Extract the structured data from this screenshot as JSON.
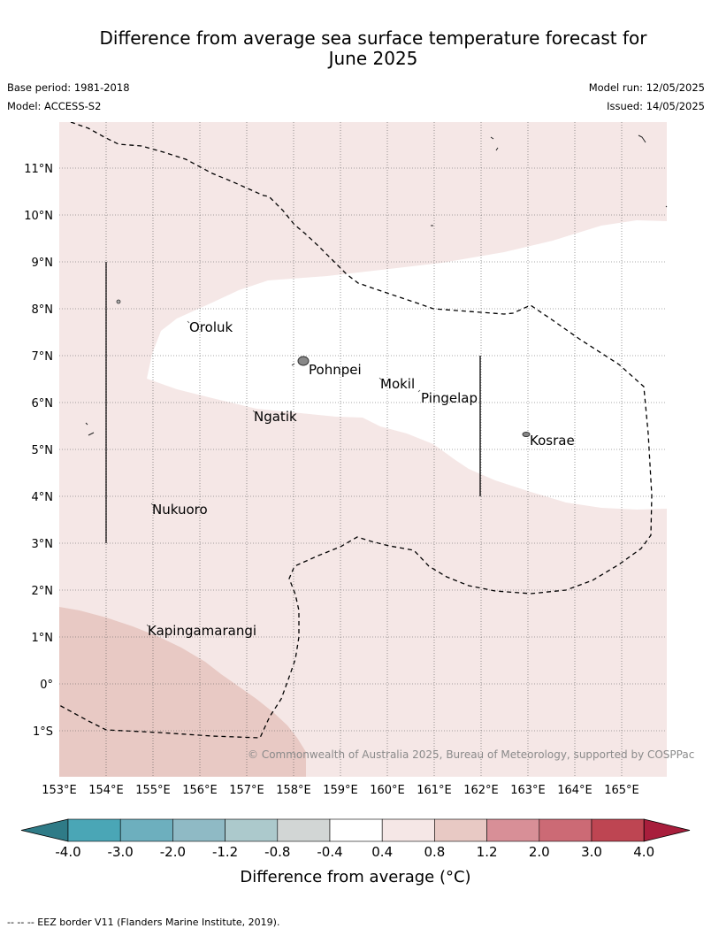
{
  "header": {
    "title": "Difference from average sea surface temperature forecast for\nJune 2025",
    "base_period": "Base period: 1981-2018",
    "model": "Model: ACCESS-S2",
    "model_run": "Model run: 12/05/2025",
    "issued": "Issued: 14/05/2025"
  },
  "map": {
    "lat_labels": [
      "11°N",
      "10°N",
      "9°N",
      "8°N",
      "7°N",
      "6°N",
      "5°N",
      "4°N",
      "3°N",
      "2°N",
      "1°N",
      "0°",
      "1°S"
    ],
    "lon_labels": [
      "153°E",
      "154°E",
      "155°E",
      "156°E",
      "157°E",
      "158°E",
      "159°E",
      "160°E",
      "161°E",
      "162°E",
      "163°E",
      "164°E",
      "165°E"
    ],
    "places": [
      "Oroluk",
      "Pohnpei",
      "Mokil",
      "Pingelap",
      "Ngatik",
      "Kosrae",
      "Nukuoro",
      "Kapingamarangi"
    ],
    "copyright": "© Commonwealth of Australia 2025, Bureau of Meteorology, supported by COSPPac",
    "colors": {
      "neutral": "#ffffff",
      "band_0_4_to_0_8": "#f5e7e6",
      "band_0_8_to_1_2": "#e8c9c4",
      "coast": "#333333"
    }
  },
  "colorbar": {
    "ticks": [
      "-4.0",
      "-3.0",
      "-2.0",
      "-1.2",
      "-0.8",
      "-0.4",
      "0.4",
      "0.8",
      "1.2",
      "2.0",
      "3.0",
      "4.0"
    ],
    "colors": [
      "#2f7b87",
      "#4aa6b6",
      "#6dafbe",
      "#8fbac5",
      "#acc9cc",
      "#d2d6d5",
      "#ffffff",
      "#f5e7e6",
      "#e8c9c4",
      "#d88f97",
      "#cc6a75",
      "#be4552",
      "#a81e3c"
    ],
    "label": "Difference from average (°C)"
  },
  "footnote": "-- -- -- EEZ border V11 (Flanders Marine Institute, 2019)."
}
